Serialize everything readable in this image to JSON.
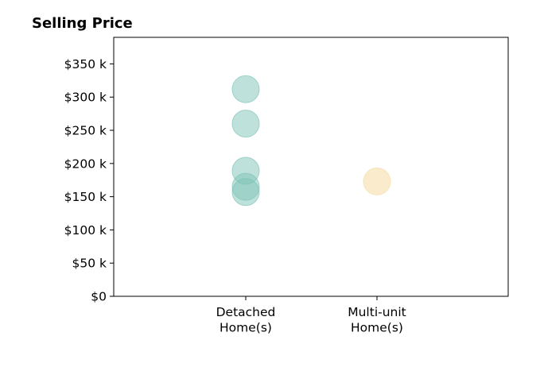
{
  "chart_data": {
    "type": "scatter",
    "title": "Selling Price",
    "xlabel": "",
    "ylabel": "",
    "categories": [
      "Detached Home(s)",
      "Multi-unit Home(s)"
    ],
    "ylim": [
      0,
      390000
    ],
    "y_ticks": [
      {
        "value": 0,
        "label": "$0"
      },
      {
        "value": 50000,
        "label": "$50 k"
      },
      {
        "value": 100000,
        "label": "$100 k"
      },
      {
        "value": 150000,
        "label": "$150 k"
      },
      {
        "value": 200000,
        "label": "$200 k"
      },
      {
        "value": 250000,
        "label": "$250 k"
      },
      {
        "value": 300000,
        "label": "$300 k"
      },
      {
        "value": 350000,
        "label": "$350 k"
      }
    ],
    "x_tick_labels": [
      [
        "Detached",
        "Home(s)"
      ],
      [
        "Multi-unit",
        "Home(s)"
      ]
    ],
    "grid": false,
    "series": [
      {
        "category": "Detached Home(s)",
        "color": "#7fc4b8",
        "opacity": 0.5,
        "values": [
          312000,
          260000,
          189000,
          165000,
          157000
        ]
      },
      {
        "category": "Multi-unit Home(s)",
        "color": "#f7e3b5",
        "opacity": 0.7,
        "values": [
          173000
        ]
      }
    ]
  }
}
